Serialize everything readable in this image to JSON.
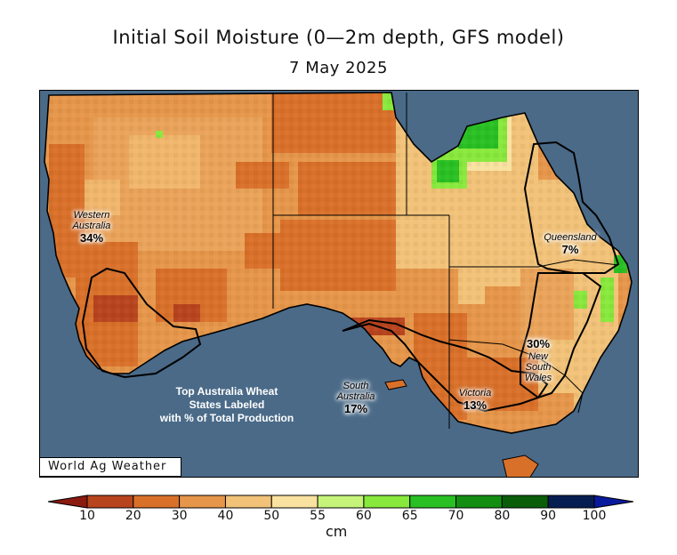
{
  "title": "Initial Soil Moisture (0—2m depth, GFS model)",
  "subtitle": "7 May 2025",
  "credit": "World Ag Weather",
  "note": [
    "Top Australia Wheat",
    "States Labeled",
    "with % of Total Production"
  ],
  "states": [
    {
      "name": [
        "Western",
        "Australia"
      ],
      "pct": "34%"
    },
    {
      "name": [
        "South",
        "Australia"
      ],
      "pct": "17%"
    },
    {
      "name": [
        "Victoria"
      ],
      "pct": "13%"
    },
    {
      "name": [
        "Queensland"
      ],
      "pct": "7%"
    },
    {
      "name": [
        "New",
        "South",
        "Wales"
      ],
      "pct": "30%"
    }
  ],
  "colorbar": {
    "units": "cm",
    "ticks": [
      "10",
      "20",
      "30",
      "40",
      "50",
      "55",
      "60",
      "65",
      "70",
      "80",
      "90",
      "100"
    ],
    "colors": [
      "#8b1a10",
      "#b8441e",
      "#d9702a",
      "#e6964a",
      "#f1c278",
      "#f9e2a0",
      "#c6f47a",
      "#88e83c",
      "#29c023",
      "#138e12",
      "#0a5e0a",
      "#061d52",
      "#0a1a9c"
    ]
  },
  "palette": {
    "ocean": "#4a6a88",
    "dry": "#d9702a",
    "moderate": "#e6964a",
    "light": "#f1c278",
    "wet": "#29c023"
  }
}
